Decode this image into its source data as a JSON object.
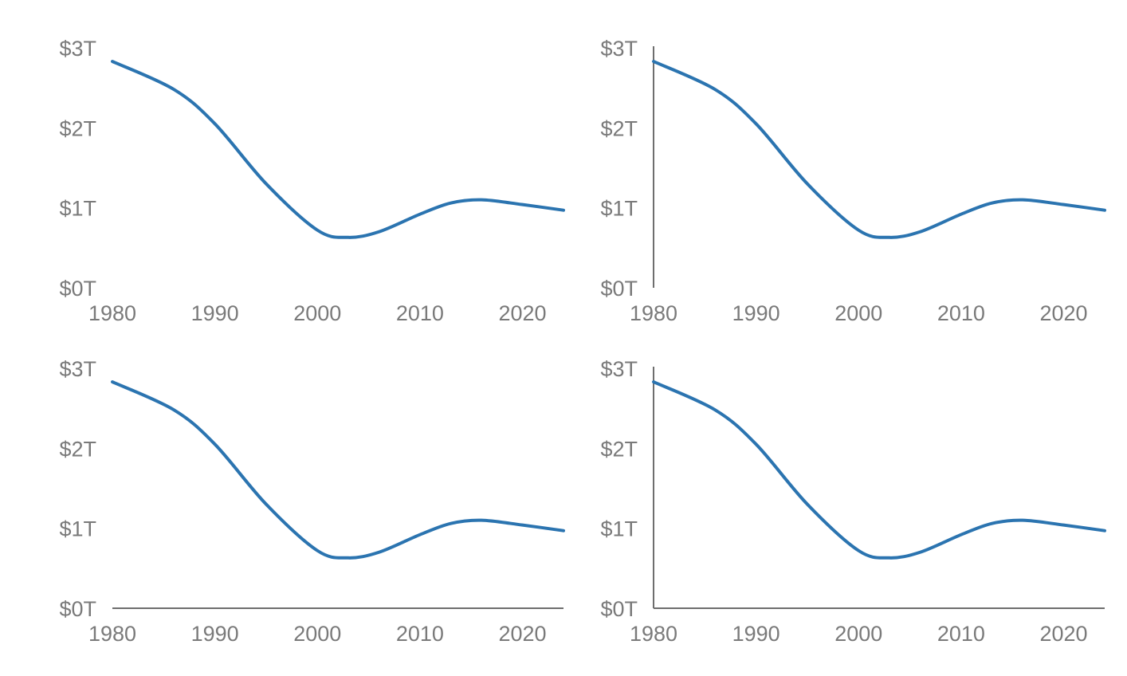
{
  "colors": {
    "line": "#2b74b0",
    "axis": "#6e6e6e",
    "tick_text": "#7a7a7a"
  },
  "chart_data": [
    {
      "type": "line",
      "panel": "top-left",
      "show_x_axis_line": false,
      "show_y_axis_line": false,
      "x": [
        1980,
        1986,
        1990,
        1995,
        2000,
        2003,
        2006,
        2010,
        2013,
        2016,
        2020,
        2024
      ],
      "series": [
        {
          "values": [
            2.83,
            2.48,
            2.05,
            1.3,
            0.72,
            0.63,
            0.7,
            0.92,
            1.06,
            1.1,
            1.04,
            0.97
          ]
        }
      ],
      "xlim": [
        1980,
        2024
      ],
      "ylim": [
        0,
        3
      ],
      "x_ticks": [
        1980,
        1990,
        2000,
        2010,
        2020
      ],
      "x_tick_labels": [
        "1980",
        "1990",
        "2000",
        "2010",
        "2020"
      ],
      "y_ticks": [
        0,
        1,
        2,
        3
      ],
      "y_tick_labels": [
        "$0T",
        "$1T",
        "$2T",
        "$3T"
      ],
      "grid": false
    },
    {
      "type": "line",
      "panel": "top-right",
      "show_x_axis_line": false,
      "show_y_axis_line": true,
      "x": [
        1980,
        1986,
        1990,
        1995,
        2000,
        2003,
        2006,
        2010,
        2013,
        2016,
        2020,
        2024
      ],
      "series": [
        {
          "values": [
            2.83,
            2.48,
            2.05,
            1.3,
            0.72,
            0.63,
            0.7,
            0.92,
            1.06,
            1.1,
            1.04,
            0.97
          ]
        }
      ],
      "xlim": [
        1980,
        2024
      ],
      "ylim": [
        0,
        3
      ],
      "x_ticks": [
        1980,
        1990,
        2000,
        2010,
        2020
      ],
      "x_tick_labels": [
        "1980",
        "1990",
        "2000",
        "2010",
        "2020"
      ],
      "y_ticks": [
        0,
        1,
        2,
        3
      ],
      "y_tick_labels": [
        "$0T",
        "$1T",
        "$2T",
        "$3T"
      ],
      "grid": false
    },
    {
      "type": "line",
      "panel": "bottom-left",
      "show_x_axis_line": true,
      "show_y_axis_line": false,
      "x": [
        1980,
        1986,
        1990,
        1995,
        2000,
        2003,
        2006,
        2010,
        2013,
        2016,
        2020,
        2024
      ],
      "series": [
        {
          "values": [
            2.83,
            2.48,
            2.05,
            1.3,
            0.72,
            0.63,
            0.7,
            0.92,
            1.06,
            1.1,
            1.04,
            0.97
          ]
        }
      ],
      "xlim": [
        1980,
        2024
      ],
      "ylim": [
        0,
        3
      ],
      "x_ticks": [
        1980,
        1990,
        2000,
        2010,
        2020
      ],
      "x_tick_labels": [
        "1980",
        "1990",
        "2000",
        "2010",
        "2020"
      ],
      "y_ticks": [
        0,
        1,
        2,
        3
      ],
      "y_tick_labels": [
        "$0T",
        "$1T",
        "$2T",
        "$3T"
      ],
      "grid": false
    },
    {
      "type": "line",
      "panel": "bottom-right",
      "show_x_axis_line": true,
      "show_y_axis_line": true,
      "x": [
        1980,
        1986,
        1990,
        1995,
        2000,
        2003,
        2006,
        2010,
        2013,
        2016,
        2020,
        2024
      ],
      "series": [
        {
          "values": [
            2.83,
            2.48,
            2.05,
            1.3,
            0.72,
            0.63,
            0.7,
            0.92,
            1.06,
            1.1,
            1.04,
            0.97
          ]
        }
      ],
      "xlim": [
        1980,
        2024
      ],
      "ylim": [
        0,
        3
      ],
      "x_ticks": [
        1980,
        1990,
        2000,
        2010,
        2020
      ],
      "x_tick_labels": [
        "1980",
        "1990",
        "2000",
        "2010",
        "2020"
      ],
      "y_ticks": [
        0,
        1,
        2,
        3
      ],
      "y_tick_labels": [
        "$0T",
        "$1T",
        "$2T",
        "$3T"
      ],
      "grid": false
    }
  ]
}
